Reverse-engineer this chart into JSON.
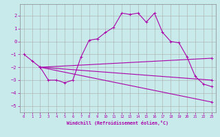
{
  "xlabel": "Windchill (Refroidissement éolien,°C)",
  "background_color": "#c8eaea",
  "grid_color": "#aaaaaa",
  "line_color": "#aa00aa",
  "xlim": [
    -0.5,
    23.5
  ],
  "ylim": [
    -5.5,
    2.9
  ],
  "yticks": [
    -5,
    -4,
    -3,
    -2,
    -1,
    0,
    1,
    2
  ],
  "xticks": [
    0,
    1,
    2,
    3,
    4,
    5,
    6,
    7,
    8,
    9,
    10,
    11,
    12,
    13,
    14,
    15,
    16,
    17,
    18,
    19,
    20,
    21,
    22,
    23
  ],
  "line1_x": [
    0,
    1,
    2,
    3,
    4,
    5,
    6,
    7,
    8,
    9,
    10,
    11,
    12,
    13,
    14,
    15,
    16,
    17,
    18,
    19,
    20,
    21,
    22,
    23
  ],
  "line1_y": [
    -1.0,
    -1.5,
    -2.0,
    -3.0,
    -3.0,
    -3.2,
    -3.0,
    -1.2,
    0.1,
    0.2,
    0.7,
    1.1,
    2.2,
    2.1,
    2.2,
    1.5,
    2.2,
    0.7,
    0.0,
    -0.1,
    -1.2,
    -2.7,
    -3.3,
    -3.5
  ],
  "line2_x": [
    2,
    23
  ],
  "line2_y": [
    -2.0,
    -1.3
  ],
  "line3_x": [
    2,
    23
  ],
  "line3_y": [
    -2.0,
    -3.0
  ],
  "line4_x": [
    2,
    23
  ],
  "line4_y": [
    -2.0,
    -4.7
  ]
}
